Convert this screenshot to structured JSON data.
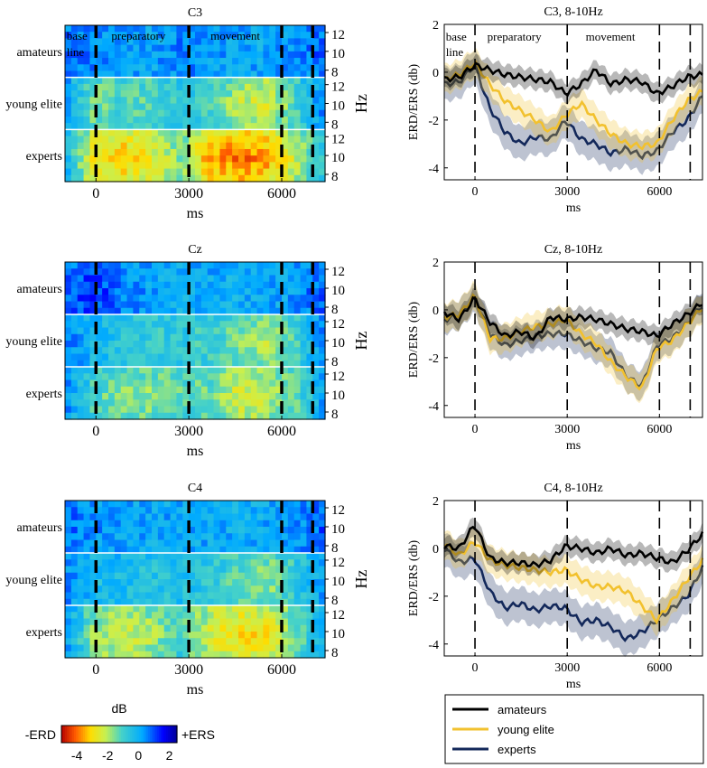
{
  "figure": {
    "colors": {
      "amateurs": "#000000",
      "young_elite": "#F2C12E",
      "experts": "#13285A"
    },
    "legend": {
      "amateurs": "amateurs",
      "young_elite": "young elite",
      "experts": "experts"
    },
    "colorbar": {
      "title": "dB",
      "left_label": "-ERD",
      "right_label": "+ERS",
      "ticks": [
        "-4",
        "-2",
        "0",
        "2"
      ],
      "range": [
        -5,
        2.5
      ]
    },
    "heatmap_common": {
      "groups": [
        "amateurs",
        "young elite",
        "experts"
      ],
      "freq_ticks": [
        "12",
        "10",
        "8"
      ],
      "freq_unit": "Hz",
      "xlabel": "ms",
      "xticks": [
        "0",
        "3000",
        "6000"
      ],
      "xrange": [
        -1000,
        7400
      ],
      "vlines": [
        0,
        3000,
        6000,
        7000
      ]
    },
    "line_common": {
      "ylabel": "ERD/ERS (db)",
      "xlabel": "ms",
      "xticks": [
        "0",
        "3000",
        "6000"
      ],
      "yticks": [
        "2",
        "0",
        "-2",
        "-4"
      ],
      "ylim": [
        -4.5,
        2
      ],
      "xrange": [
        -1000,
        7400
      ],
      "vlines": [
        0,
        3000,
        6000,
        7000
      ]
    },
    "phases": {
      "base": "base",
      "line": "line",
      "preparatory": "preparatory",
      "movement": "movement"
    }
  },
  "chart_data": [
    {
      "type": "heatmap",
      "title": "C3",
      "xlabel": "ms",
      "ylabel": "Hz",
      "rows": [
        "amateurs",
        "young elite",
        "experts"
      ],
      "mean_intensity_dB": {
        "amateurs": [
          0.8,
          0.5,
          0.3,
          0.2,
          0.5,
          0.3,
          0.2,
          0.1,
          0.4,
          0.9
        ],
        "young elite": [
          0.4,
          -1.5,
          -1.0,
          -1.2,
          -0.6,
          -0.9,
          -2.0,
          -2.2,
          -1.0,
          0.5
        ],
        "experts": [
          0.0,
          -2.6,
          -3.0,
          -2.4,
          -1.5,
          -3.2,
          -3.6,
          -3.3,
          -2.0,
          -0.6
        ]
      }
    },
    {
      "type": "line",
      "title": "C3, 8-10Hz",
      "xlabel": "ms",
      "ylabel": "ERD/ERS (db)",
      "ylim": [
        -4.5,
        2
      ],
      "x": [
        -1000,
        -500,
        0,
        500,
        1000,
        1500,
        2000,
        2500,
        3000,
        3500,
        4000,
        4500,
        5000,
        5500,
        6000,
        6500,
        7000,
        7400
      ],
      "series": [
        {
          "name": "amateurs",
          "values": [
            -0.3,
            -0.2,
            0.3,
            0.1,
            -0.1,
            -0.2,
            -0.3,
            -0.4,
            -0.9,
            -0.5,
            0.1,
            -0.5,
            -0.3,
            -0.4,
            -0.9,
            -0.6,
            -0.2,
            -0.1
          ],
          "band": 0.4
        },
        {
          "name": "young elite",
          "values": [
            -0.3,
            -0.1,
            0.4,
            -0.5,
            -1.2,
            -1.6,
            -2.0,
            -2.5,
            -1.8,
            -1.3,
            -2.0,
            -2.6,
            -3.0,
            -3.1,
            -3.0,
            -2.0,
            -1.2,
            -0.8
          ],
          "band": 0.6
        },
        {
          "name": "experts",
          "values": [
            -0.5,
            -0.4,
            0.3,
            -1.5,
            -2.5,
            -3.0,
            -2.7,
            -2.8,
            -2.0,
            -2.8,
            -3.0,
            -3.4,
            -3.2,
            -3.5,
            -3.3,
            -2.5,
            -2.0,
            -1.0
          ],
          "band": 0.7
        }
      ]
    },
    {
      "type": "heatmap",
      "title": "Cz",
      "xlabel": "ms",
      "ylabel": "Hz",
      "rows": [
        "amateurs",
        "young elite",
        "experts"
      ],
      "mean_intensity_dB": {
        "amateurs": [
          0.8,
          1.2,
          0.6,
          0.2,
          0.0,
          0.1,
          0.0,
          0.1,
          0.3,
          1.0
        ],
        "young elite": [
          0.6,
          -0.2,
          -0.5,
          -0.8,
          -0.7,
          -0.9,
          -1.4,
          -2.0,
          -1.0,
          0.6
        ],
        "experts": [
          0.5,
          -1.0,
          -1.5,
          -1.5,
          -1.2,
          -1.3,
          -2.2,
          -2.0,
          -1.2,
          0.3
        ]
      }
    },
    {
      "type": "line",
      "title": "Cz, 8-10Hz",
      "xlabel": "ms",
      "ylabel": "ERD/ERS (db)",
      "ylim": [
        -4.5,
        2
      ],
      "x": [
        -1000,
        -500,
        0,
        500,
        1000,
        1500,
        2000,
        2500,
        3000,
        3500,
        4000,
        4500,
        5000,
        5500,
        6000,
        6500,
        7000,
        7400
      ],
      "series": [
        {
          "name": "amateurs",
          "values": [
            -0.1,
            -0.4,
            0.5,
            -0.5,
            -1.1,
            -0.9,
            -1.2,
            -0.3,
            -0.4,
            -0.3,
            -0.4,
            -0.6,
            -0.8,
            -0.9,
            -1.1,
            -0.6,
            -0.2,
            0.3
          ],
          "band": 0.4
        },
        {
          "name": "young elite",
          "values": [
            -0.3,
            -0.2,
            0.6,
            -1.2,
            -1.2,
            -0.9,
            -0.7,
            -0.6,
            -0.4,
            -1.0,
            -1.4,
            -2.2,
            -2.8,
            -3.3,
            -1.6,
            -1.3,
            -0.6,
            0.1
          ],
          "band": 0.6
        },
        {
          "name": "experts",
          "values": [
            -0.4,
            -0.2,
            0.5,
            -1.0,
            -1.5,
            -1.3,
            -1.1,
            -1.0,
            -1.0,
            -1.3,
            -1.6,
            -1.8,
            -2.8,
            -3.2,
            -1.5,
            -1.2,
            -0.6,
            0.2
          ],
          "band": 0.6
        }
      ]
    },
    {
      "type": "heatmap",
      "title": "C4",
      "xlabel": "ms",
      "ylabel": "Hz",
      "rows": [
        "amateurs",
        "young elite",
        "experts"
      ],
      "mean_intensity_dB": {
        "amateurs": [
          0.8,
          0.4,
          0.2,
          0.1,
          0.2,
          0.1,
          0.0,
          0.1,
          0.3,
          0.9
        ],
        "young elite": [
          0.5,
          -0.3,
          -0.2,
          -0.5,
          -0.4,
          -0.6,
          -1.2,
          -1.6,
          -0.8,
          0.5
        ],
        "experts": [
          0.4,
          -1.6,
          -2.2,
          -1.8,
          -1.0,
          -2.2,
          -2.8,
          -2.6,
          -1.4,
          0.2
        ]
      }
    },
    {
      "type": "line",
      "title": "C4, 8-10Hz",
      "xlabel": "ms",
      "ylabel": "ERD/ERS (db)",
      "ylim": [
        -4.5,
        2
      ],
      "x": [
        -1000,
        -500,
        0,
        500,
        1000,
        1500,
        2000,
        2500,
        3000,
        3500,
        4000,
        4500,
        5000,
        5500,
        6000,
        6500,
        7000,
        7400
      ],
      "series": [
        {
          "name": "amateurs",
          "values": [
            0.1,
            0.0,
            1.0,
            -0.4,
            -0.6,
            -0.6,
            -0.7,
            -0.5,
            0.1,
            0.0,
            -0.2,
            0.0,
            -0.3,
            -0.2,
            -0.4,
            -0.6,
            -0.1,
            0.6
          ],
          "band": 0.4
        },
        {
          "name": "young elite",
          "values": [
            0.2,
            -0.3,
            0.3,
            -0.5,
            -0.7,
            -0.8,
            -0.9,
            -1.0,
            -0.9,
            -1.3,
            -1.6,
            -1.6,
            -1.8,
            -2.4,
            -3.0,
            -2.2,
            -1.3,
            -0.5
          ],
          "band": 0.6
        },
        {
          "name": "experts",
          "values": [
            0.0,
            -0.6,
            -0.4,
            -1.8,
            -2.5,
            -2.3,
            -2.6,
            -2.4,
            -2.5,
            -3.1,
            -3.0,
            -3.3,
            -3.8,
            -3.5,
            -3.0,
            -2.5,
            -2.0,
            -0.8
          ],
          "band": 0.7
        }
      ]
    }
  ]
}
